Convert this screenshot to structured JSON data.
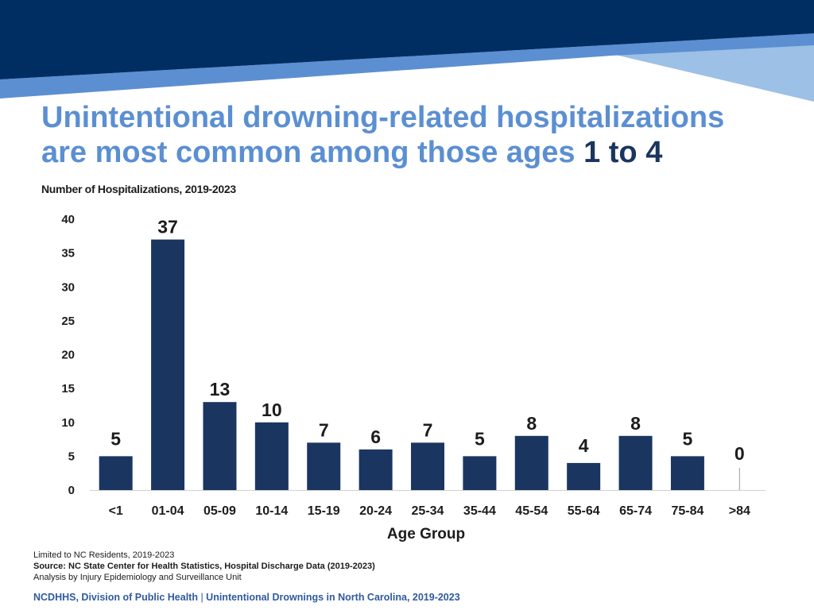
{
  "title": {
    "line1": "Unintentional drowning-related hospitalizations",
    "line2_prefix": "are most common among those ages ",
    "age_from": "1",
    "age_to_word": " to ",
    "age_to": "4"
  },
  "chart_data": {
    "type": "bar",
    "title": "Number of Hospitalizations, 2019-2023",
    "xlabel": "Age Group",
    "ylabel": "",
    "categories": [
      "<1",
      "01-04",
      "05-09",
      "10-14",
      "15-19",
      "20-24",
      "25-34",
      "35-44",
      "45-54",
      "55-64",
      "65-74",
      "75-84",
      ">84"
    ],
    "values": [
      5,
      37,
      13,
      10,
      7,
      6,
      7,
      5,
      8,
      4,
      8,
      5,
      0
    ],
    "ylim": [
      0,
      40
    ],
    "yticks": [
      0,
      5,
      10,
      15,
      20,
      25,
      30,
      35,
      40
    ],
    "grid": false,
    "bar_color": "#1a3660"
  },
  "footnotes": {
    "line1": "Limited to NC Residents, 2019-2023",
    "source": "Source: NC State Center for Health Statistics, Hospital Discharge Data (2019-2023)",
    "analysis": "Analysis by Injury Epidemiology and Surveillance Unit"
  },
  "footer": {
    "org": "NCDHHS, Division of Public Health",
    "separator": " | ",
    "report": "Unintentional Drownings in North Carolina, 2019-2023"
  },
  "colors": {
    "banner_dark": "#002d62",
    "banner_mid": "#5b8fd2",
    "banner_light": "#9cc0e6",
    "title": "#5b8fd2",
    "title_emphasis": "#1a3660",
    "footer": "#2f5aa0"
  }
}
